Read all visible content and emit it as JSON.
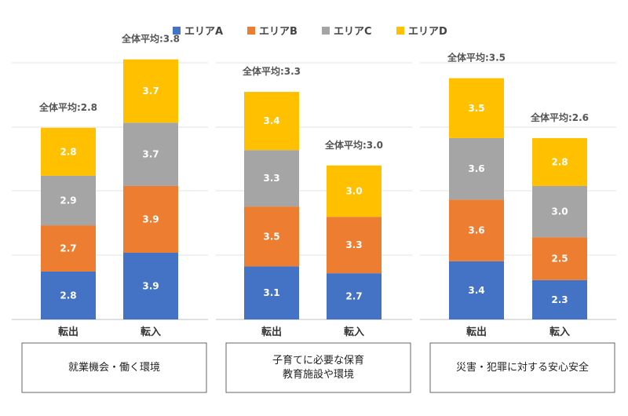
{
  "chart_data": {
    "type": "bar",
    "stacked": true,
    "colors": {
      "エリアA": "#4472C4",
      "エリアB": "#ED7D31",
      "エリアC": "#A5A5A5",
      "エリアD": "#FFC000"
    },
    "legend": {
      "position": "top",
      "entries": [
        {
          "name": "エリアA",
          "color": "#4472C4"
        },
        {
          "name": "エリアB",
          "color": "#ED7D31"
        },
        {
          "name": "エリアC",
          "color": "#A5A5A5"
        },
        {
          "name": "エリアD",
          "color": "#FFC000"
        }
      ]
    },
    "panels": [
      {
        "title": "就業機会・働く環境",
        "categories": [
          "転出",
          "転入"
        ],
        "series": [
          {
            "name": "エリアA",
            "values": [
              2.8,
              3.9
            ]
          },
          {
            "name": "エリアB",
            "values": [
              2.7,
              3.9
            ]
          },
          {
            "name": "エリアC",
            "values": [
              2.9,
              3.7
            ]
          },
          {
            "name": "エリアD",
            "values": [
              2.8,
              3.7
            ]
          }
        ],
        "totals": [
          "全体平均:2.8",
          "全体平均:3.8"
        ]
      },
      {
        "title": "子育てに必要な保育\n教育施設や環境",
        "categories": [
          "転出",
          "転入"
        ],
        "series": [
          {
            "name": "エリアA",
            "values": [
              3.1,
              2.7
            ]
          },
          {
            "name": "エリアB",
            "values": [
              3.5,
              3.3
            ]
          },
          {
            "name": "エリアC",
            "values": [
              3.3,
              null
            ]
          },
          {
            "name": "エリアD",
            "values": [
              3.4,
              3.0
            ]
          }
        ],
        "totals": [
          "全体平均:3.3",
          "全体平均:3.0"
        ]
      },
      {
        "title": "災害・犯罪に対する安心安全",
        "categories": [
          "転出",
          "転入"
        ],
        "series": [
          {
            "name": "エリアA",
            "values": [
              3.4,
              2.3
            ]
          },
          {
            "name": "エリアB",
            "values": [
              3.6,
              2.5
            ]
          },
          {
            "name": "エリアC",
            "values": [
              3.6,
              3.0
            ]
          },
          {
            "name": "エリアD",
            "values": [
              3.5,
              2.8
            ]
          }
        ],
        "totals": [
          "全体平均:3.5",
          "全体平均:2.6"
        ]
      }
    ],
    "grid": true,
    "ylim": [
      0,
      15
    ]
  }
}
